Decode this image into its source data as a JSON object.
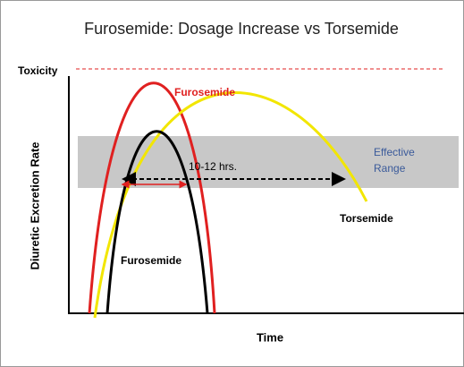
{
  "header": {
    "title": "Furosemide: Dosage Increase vs Torsemide"
  },
  "axes": {
    "y_label": "Diuretic Excretion Rate",
    "x_label": "Time"
  },
  "toxicity": {
    "label": "Toxicity"
  },
  "effective_range": {
    "lines": [
      "Effective",
      "Range"
    ]
  },
  "duration": {
    "label": "10-12 hrs."
  },
  "curves": [
    {
      "label": "Furosemide"
    },
    {
      "label": "Furosemide"
    },
    {
      "label": "Torsemide"
    }
  ]
}
